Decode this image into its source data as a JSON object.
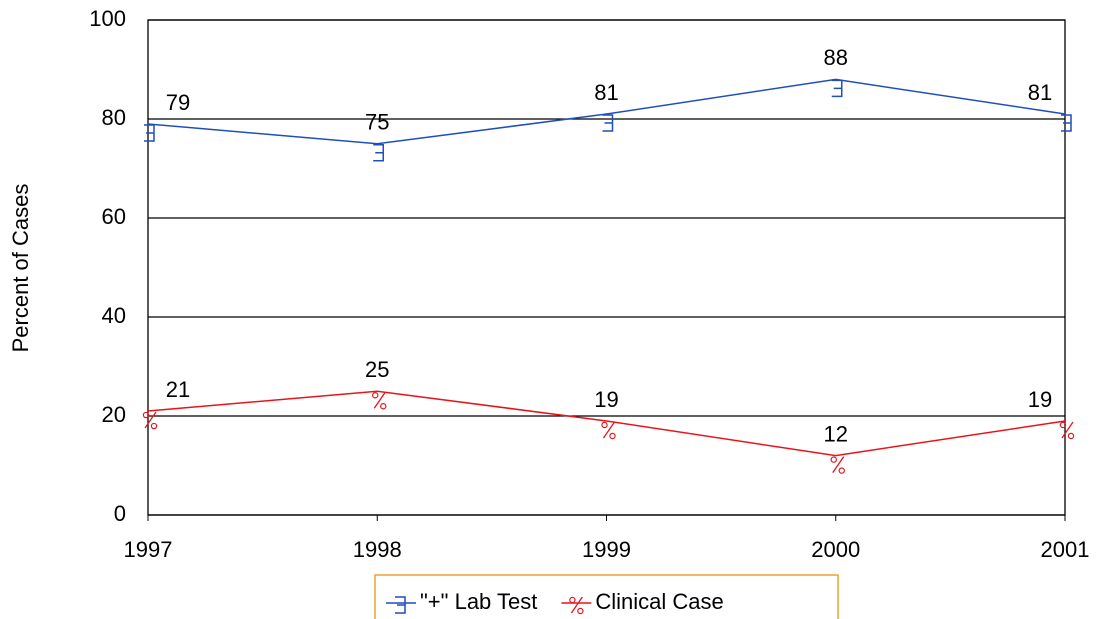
{
  "chart_data": {
    "type": "line",
    "y_label": "Percent of Cases",
    "x": [
      1997,
      1998,
      1999,
      2000,
      2001
    ],
    "xlim": [
      1997,
      2001
    ],
    "xticks": [
      1997,
      1998,
      1999,
      2000,
      2001
    ],
    "ylim": [
      0,
      100
    ],
    "yticks": [
      0,
      20,
      40,
      60,
      80,
      100
    ],
    "grid": true,
    "legend": "bottom",
    "series": [
      {
        "name": "\"+\" Lab Test",
        "color": "#1f4fb8",
        "values": [
          79,
          75,
          81,
          88,
          81
        ]
      },
      {
        "name": "Clinical Case",
        "color": "#e8141b",
        "values": [
          21,
          25,
          19,
          12,
          19
        ]
      }
    ]
  }
}
